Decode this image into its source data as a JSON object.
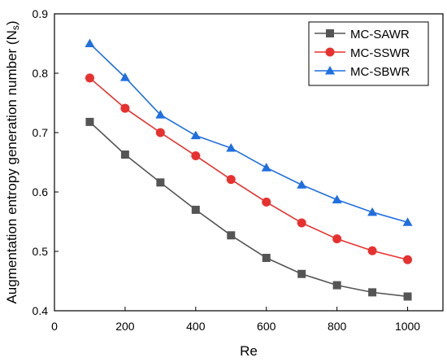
{
  "chart_data": {
    "type": "line",
    "xlabel": "Re",
    "ylabel_main": "Augmentation entropy generation number (N",
    "ylabel_sub": "s",
    "ylabel_close": ")",
    "xlim": [
      0,
      1100
    ],
    "ylim": [
      0.4,
      0.9
    ],
    "xticks": [
      "0",
      "200",
      "400",
      "600",
      "800",
      "1000"
    ],
    "yticks": [
      "0.4",
      "0.5",
      "0.6",
      "0.7",
      "0.8",
      "0.9"
    ],
    "legend_position": "top-right",
    "grid": false,
    "x": [
      100,
      200,
      300,
      400,
      500,
      600,
      700,
      800,
      900,
      1000
    ],
    "series": [
      {
        "name": "MC-SAWR",
        "marker": "square",
        "color": "#555555",
        "values": [
          0.718,
          0.663,
          0.616,
          0.57,
          0.527,
          0.489,
          0.462,
          0.443,
          0.431,
          0.424
        ]
      },
      {
        "name": "MC-SSWR",
        "marker": "circle",
        "color": "#e8312f",
        "values": [
          0.792,
          0.741,
          0.7,
          0.661,
          0.621,
          0.583,
          0.548,
          0.521,
          0.501,
          0.486
        ]
      },
      {
        "name": "MC-SBWR",
        "marker": "triangle",
        "color": "#1f6fe0",
        "values": [
          0.85,
          0.793,
          0.73,
          0.695,
          0.674,
          0.641,
          0.612,
          0.587,
          0.566,
          0.549
        ]
      }
    ]
  }
}
